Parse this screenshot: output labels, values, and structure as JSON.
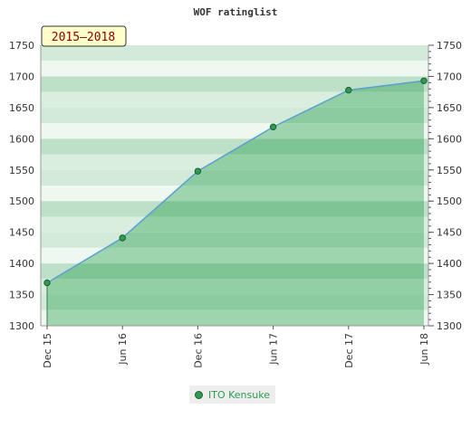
{
  "chart_data": {
    "type": "area",
    "title": "WOF ratinglist",
    "period_label": "2015–2018",
    "x_labels": [
      "Dec 15",
      "Jun 16",
      "Dec 16",
      "Jun 17",
      "Dec 17",
      "Jun 18"
    ],
    "ylim": [
      1300,
      1750
    ],
    "y_ticks": [
      1300,
      1350,
      1400,
      1450,
      1500,
      1550,
      1600,
      1650,
      1700,
      1750
    ],
    "series": [
      {
        "name": "ITO Kensuke",
        "values": [
          1369,
          1441,
          1548,
          1619,
          1678,
          1693
        ]
      }
    ],
    "legend_position": "bottom",
    "grid": false,
    "colors": {
      "line": "#5a9fd4",
      "marker": "#2e9b52",
      "area": "#5fb57b"
    }
  }
}
